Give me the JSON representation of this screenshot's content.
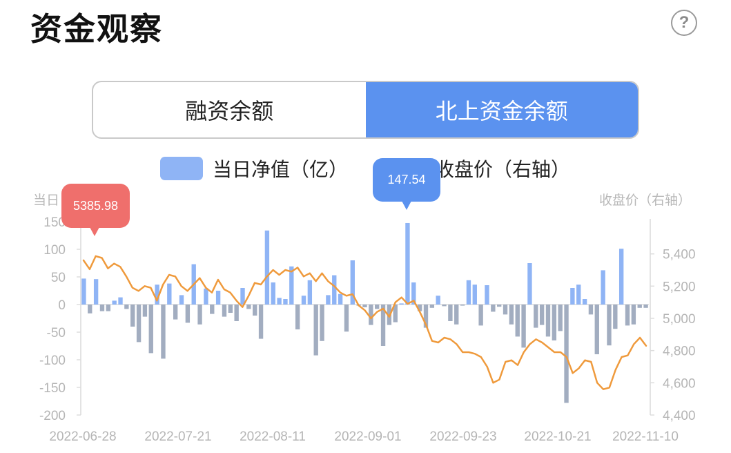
{
  "header": {
    "title": "资金观察",
    "help_icon": "question-circle-icon"
  },
  "tabs": [
    {
      "label": "融资余额",
      "active": false
    },
    {
      "label": "北上资金余额",
      "active": true
    }
  ],
  "legend": {
    "bar_label": "当日净值（亿）",
    "line_label": "收盘价（右轴）"
  },
  "colors": {
    "positive_bar": "#8fb4f5",
    "negative_bar": "#a2adc0",
    "line": "#ef9a3c",
    "tab_active": "#5b92ef",
    "tooltip_red": "#ef6f6c",
    "tooltip_blue": "#5b92ef"
  },
  "tooltips": {
    "line_max": "5385.98",
    "bar_max": "147.54"
  },
  "chart_data": {
    "type": "bar",
    "title": "",
    "ylabel": "当日",
    "y2label": "收盘价（右轴）",
    "ylim": [
      -200,
      150
    ],
    "y2lim": [
      4400,
      5600
    ],
    "yticks": [
      "150",
      "100",
      "50",
      "0",
      "-50",
      "-100",
      "-150",
      "-200"
    ],
    "y2ticks": [
      "5,400",
      "5,200",
      "5,000",
      "4,800",
      "4,600",
      "4,400"
    ],
    "xticks": [
      "2022-06-28",
      "2022-07-21",
      "2022-08-11",
      "2022-09-01",
      "2022-09-23",
      "2022-10-21",
      "2022-11-10"
    ],
    "grid": false,
    "legend_position": "top",
    "series": [
      {
        "name": "当日净值（亿）",
        "type": "bar",
        "values": [
          47,
          -16,
          46,
          -12,
          -12,
          7,
          13,
          -8,
          -40,
          -68,
          -22,
          -88,
          36,
          -98,
          38,
          -27,
          17,
          -33,
          73,
          -36,
          29,
          -17,
          25,
          -22,
          -15,
          -30,
          30,
          -8,
          -20,
          -62,
          134,
          40,
          12,
          10,
          69,
          -45,
          16,
          44,
          -92,
          -66,
          17,
          53,
          19,
          -49,
          80,
          -2,
          -5,
          -37,
          -8,
          -75,
          -37,
          -32,
          2,
          147.54,
          40,
          -12,
          -42,
          -6,
          16,
          -3,
          -30,
          -36,
          -2,
          44,
          36,
          -38,
          35,
          -13,
          -4,
          -18,
          -36,
          -58,
          -78,
          75,
          -42,
          -37,
          -58,
          -65,
          -48,
          -178,
          30,
          36,
          10,
          -18,
          -90,
          62,
          -74,
          -44,
          101,
          -38,
          -36,
          -6,
          -6
        ]
      },
      {
        "name": "收盘价（右轴）",
        "type": "line",
        "axis": "right",
        "values": [
          5360,
          5305,
          5386,
          5375,
          5310,
          5340,
          5320,
          5260,
          5190,
          5170,
          5200,
          5190,
          5110,
          5210,
          5270,
          5260,
          5200,
          5170,
          5210,
          5250,
          5190,
          5160,
          5240,
          5180,
          5160,
          5110,
          5070,
          5140,
          5220,
          5210,
          5260,
          5300,
          5270,
          5300,
          5290,
          5315,
          5260,
          5280,
          5230,
          5280,
          5230,
          5200,
          5160,
          5140,
          5150,
          5080,
          5050,
          5000,
          5040,
          5060,
          5010,
          5100,
          5130,
          5090,
          5110,
          5040,
          4960,
          4860,
          4850,
          4880,
          4870,
          4840,
          4790,
          4790,
          4780,
          4760,
          4700,
          4600,
          4620,
          4730,
          4740,
          4710,
          4790,
          4840,
          4870,
          4850,
          4820,
          4790,
          4790,
          4760,
          4660,
          4690,
          4740,
          4730,
          4600,
          4560,
          4570,
          4680,
          4760,
          4770,
          4840,
          4880,
          4830
        ]
      }
    ]
  }
}
